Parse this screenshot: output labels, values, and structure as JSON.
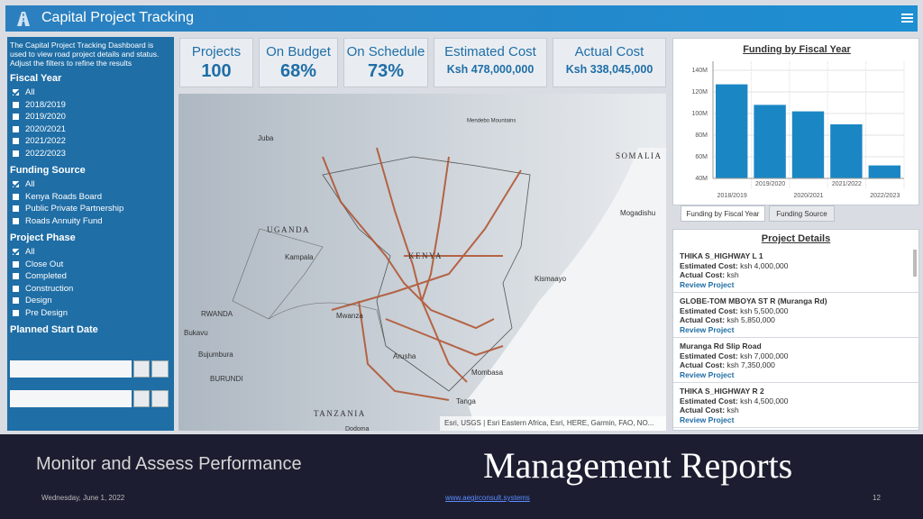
{
  "header": {
    "title": "Capital Project Tracking"
  },
  "sidebar": {
    "intro": "The Capital Project Tracking Dashboard is used to view road project details and status. Adjust the filters to refine the results",
    "filters": [
      {
        "title": "Fiscal Year",
        "options": [
          "All",
          "2018/2019",
          "2019/2020",
          "2020/2021",
          "2021/2022",
          "2022/2023"
        ]
      },
      {
        "title": "Funding Source",
        "options": [
          "All",
          "Kenya Roads Board",
          "Public Private Partnership",
          "Roads Annuity Fund"
        ]
      },
      {
        "title": "Project Phase",
        "options": [
          "All",
          "Close Out",
          "Completed",
          "Construction",
          "Design",
          "Pre Design"
        ]
      }
    ],
    "date_title": "Planned Start Date"
  },
  "kpis": [
    {
      "label": "Projects",
      "value": "100"
    },
    {
      "label": "On Budget",
      "value": "68%"
    },
    {
      "label": "On Schedule",
      "value": "73%"
    },
    {
      "label": "Estimated Cost",
      "value": "Ksh 478,000,000"
    },
    {
      "label": "Actual Cost",
      "value": "Ksh 338,045,000"
    }
  ],
  "map": {
    "labels": [
      "Juba",
      "Mendebo Mountains",
      "SOMALIA",
      "Mogadishu",
      "UGANDA",
      "Kampala",
      "KENYA",
      "Kismaayo",
      "RWANDA",
      "Mwanza",
      "Bukavu",
      "Bujumbura",
      "BURUNDI",
      "Arusha",
      "Mombasa",
      "Tanga",
      "TANZANIA",
      "Dodoma"
    ],
    "attribution": "Esri, USGS | Esri Eastern Africa, Esri, HERE, Garmin, FAO, NO..."
  },
  "chart_data": {
    "type": "bar",
    "title": "Funding by Fiscal Year",
    "categories": [
      "2018/2019",
      "2019/2020",
      "2020/2021",
      "2021/2022",
      "2022/2023"
    ],
    "values": [
      127000000,
      108000000,
      102000000,
      90000000,
      52000000
    ],
    "color": "#1a87c4",
    "ylim": [
      40000000,
      140000000
    ],
    "yticks": [
      {
        "value": 40000000,
        "label": "40M"
      },
      {
        "value": 60000000,
        "label": "60M"
      },
      {
        "value": 80000000,
        "label": "80M"
      },
      {
        "value": 100000000,
        "label": "100M"
      },
      {
        "value": 120000000,
        "label": "120M"
      },
      {
        "value": 140000000,
        "label": "140M"
      }
    ],
    "grid": true
  },
  "tabs": [
    "Funding by Fiscal Year",
    "Funding Source"
  ],
  "projects": {
    "title": "Project Details",
    "estimated_label": "Estimated Cost:",
    "actual_label": "Actual Cost:",
    "link_label": "Review Project",
    "items": [
      {
        "name": "THIKA S_HIGHWAY L 1",
        "estimated": "ksh 4,000,000",
        "actual": "ksh"
      },
      {
        "name": "GLOBE-TOM MBOYA ST R (Muranga Rd)",
        "estimated": "ksh 5,500,000",
        "actual": "ksh 5,850,000"
      },
      {
        "name": "Muranga Rd Slip Road",
        "estimated": "ksh 7,000,000",
        "actual": "ksh 7,350,000"
      },
      {
        "name": "THIKA S_HIGHWAY R 2",
        "estimated": "ksh 4,500,000",
        "actual": "ksh"
      }
    ]
  },
  "footer": {
    "left": "Monitor and Assess Performance",
    "right": "Management Reports",
    "date": "Wednesday, June 1, 2022",
    "url": "www.aegirconsult.systems",
    "page": "12"
  }
}
